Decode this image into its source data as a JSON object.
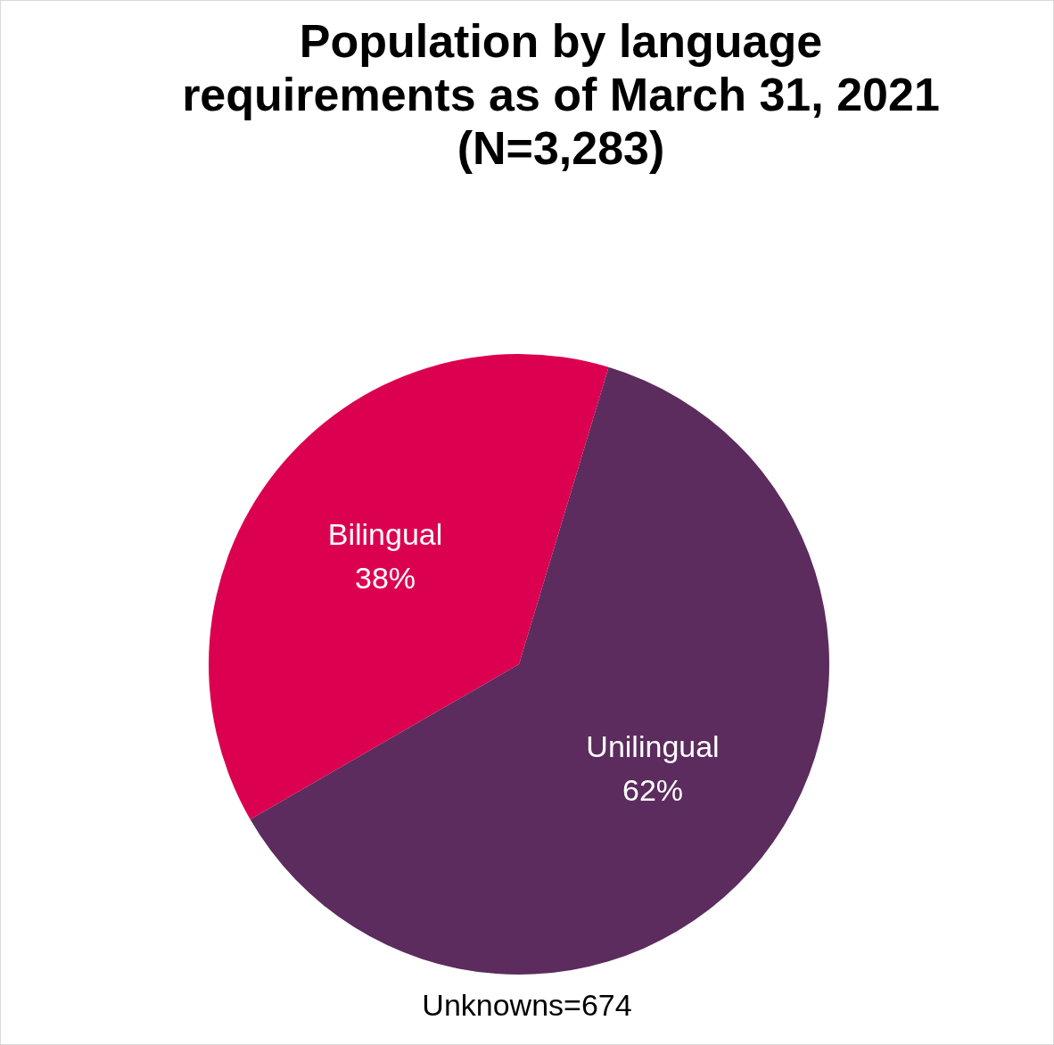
{
  "chart_data": {
    "type": "pie",
    "title": "Population by language requirements as of March 31, 2021 (N=3,283)",
    "categories": [
      "Bilingual",
      "Unilingual"
    ],
    "values": [
      38,
      62
    ],
    "colors": [
      "#dc0050",
      "#5c2c5e"
    ],
    "value_labels": [
      "38%",
      "62%"
    ],
    "annotations": [
      "Unknowns=674"
    ]
  }
}
